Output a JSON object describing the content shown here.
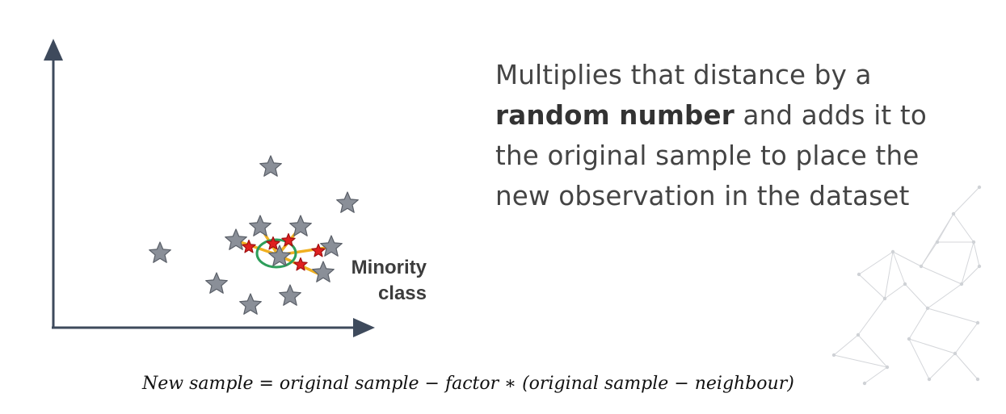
{
  "diagram": {
    "label_line1": "Minority",
    "label_line2": "class",
    "colors": {
      "axis": "#3e4a5c",
      "majority_star": "#8a8f98",
      "minority_star": "#e02020",
      "connector": "#f0b020",
      "neighbourhood_circle": "#2e9e5a"
    }
  },
  "headline": {
    "line1": "Multiplies that distance by a",
    "line2_bold": "random number",
    "line2_rest": " and adds it to",
    "line3": "the original sample to place the",
    "line4": "new observation in the dataset"
  },
  "formula": {
    "text": "New sample = original sample  − factor  ∗ (original sample  − neighbour)"
  }
}
